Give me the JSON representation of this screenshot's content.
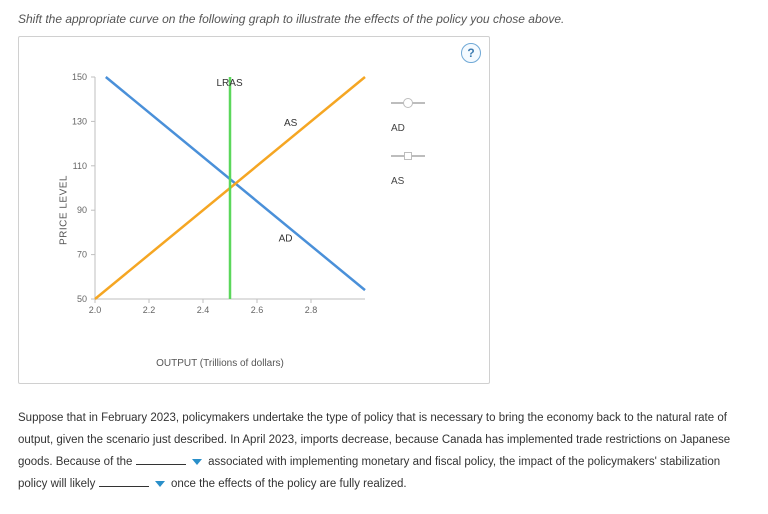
{
  "instruction": "Shift the appropriate curve on the following graph to illustrate the effects of the policy you chose above.",
  "help_symbol": "?",
  "chart": {
    "ylabel": "PRICE LEVEL",
    "xlabel": "OUTPUT (Trillions of dollars)",
    "xlim": [
      2.0,
      3.0
    ],
    "ylim": [
      50,
      150
    ],
    "xticks": [
      2.0,
      2.2,
      2.4,
      2.6,
      2.8
    ],
    "yticks": [
      50,
      70,
      90,
      110,
      130,
      150
    ],
    "xtick_labels": [
      "2.0",
      "2.2",
      "2.4",
      "2.6",
      "2.8"
    ],
    "ytick_labels": [
      "50",
      "70",
      "90",
      "110",
      "130",
      "150"
    ],
    "grid_color": "#bfbfbf",
    "background": "#ffffff",
    "tick_fontsize": 9,
    "label_fontsize": 10,
    "series": {
      "AD": {
        "label": "AD",
        "color": "#4a90d9",
        "points": [
          [
            2.04,
            150
          ],
          [
            3.0,
            54
          ]
        ],
        "line_label_pos": [
          2.68,
          76
        ]
      },
      "AS": {
        "label": "AS",
        "color": "#f5a623",
        "points": [
          [
            2.0,
            50
          ],
          [
            3.0,
            150
          ]
        ],
        "line_label_pos": [
          2.7,
          128
        ]
      },
      "LRAS": {
        "label": "LRAS",
        "color": "#5bd75b",
        "points": [
          [
            2.5,
            50
          ],
          [
            2.5,
            150
          ]
        ],
        "line_label_pos": [
          2.45,
          146
        ]
      }
    }
  },
  "legend": {
    "items": [
      {
        "label": "AD",
        "marker": "circle"
      },
      {
        "label": "AS",
        "marker": "square"
      }
    ],
    "line_color": "#bdbdbd"
  },
  "paragraph": {
    "t1": "Suppose that in February 2023, policymakers undertake the type of policy that is necessary to bring the economy back to the natural rate of output, given the scenario just described. In April 2023, imports decrease, because Canada has implemented trade restrictions on Japanese goods. Because of the",
    "t2": "associated with implementing monetary and fiscal policy, the impact of the policymakers' stabilization policy will likely",
    "t3": "once the effects of the policy are fully realized."
  }
}
